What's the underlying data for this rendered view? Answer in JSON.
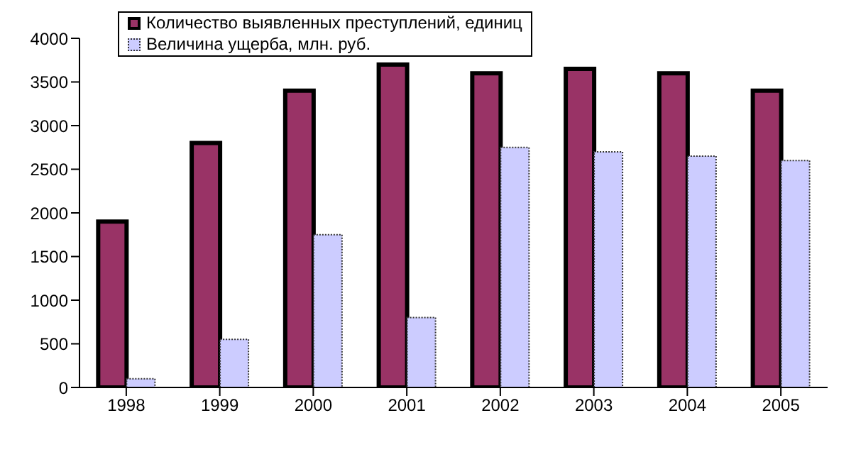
{
  "chart_data": {
    "type": "bar",
    "categories": [
      "1998",
      "1999",
      "2000",
      "2001",
      "2002",
      "2003",
      "2004",
      "2005"
    ],
    "series": [
      {
        "name": "Количество выявленных преступлений, единиц",
        "color": "#993366",
        "values": [
          1900,
          2800,
          3400,
          3700,
          3600,
          3650,
          3600,
          3400
        ]
      },
      {
        "name": "Величина ущерба, млн. руб.",
        "color": "#ccccff",
        "values": [
          100,
          550,
          1750,
          800,
          2750,
          2700,
          2650,
          2600
        ]
      }
    ],
    "ylim": [
      0,
      4000
    ],
    "yticks": [
      0,
      500,
      1000,
      1500,
      2000,
      2500,
      3000,
      3500,
      4000
    ],
    "grid": false,
    "legend": "top left"
  }
}
